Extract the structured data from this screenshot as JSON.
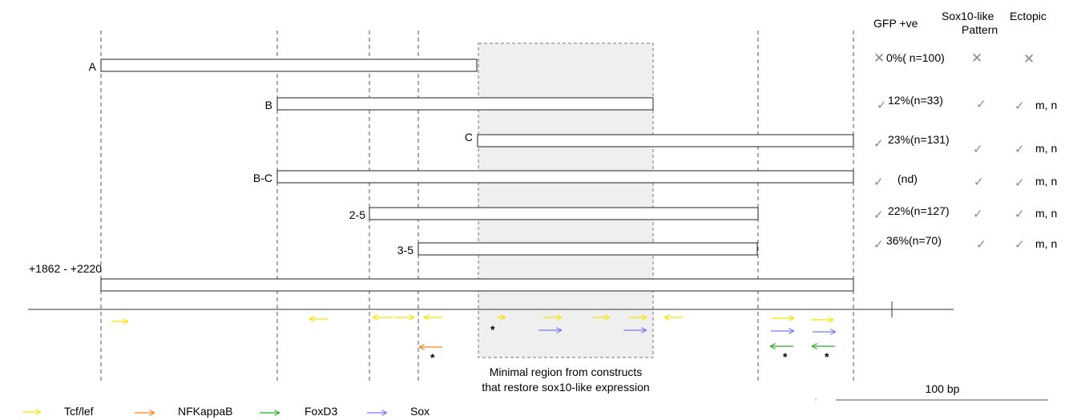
{
  "headers": {
    "gfp": "GFP +ve",
    "sox10_line1": "Sox10-like",
    "sox10_line2": "Pattern",
    "ectopic": "Ectopic"
  },
  "constructs": [
    {
      "label": "A",
      "gfp": "0%( n=100)",
      "gfp_mark": "cross",
      "sox10": "cross",
      "ectopic": "cross",
      "ectopic_text": ""
    },
    {
      "label": "B",
      "gfp": "12%(n=33)",
      "gfp_mark": "check",
      "sox10": "check",
      "ectopic": "check",
      "ectopic_text": "m, n"
    },
    {
      "label": "C",
      "gfp": "23%(n=131)",
      "gfp_mark": "check",
      "sox10": "check",
      "ectopic": "check",
      "ectopic_text": "m, n"
    },
    {
      "label": "B-C",
      "gfp": "(nd)",
      "gfp_mark": "check",
      "sox10": "check",
      "ectopic": "check",
      "ectopic_text": "m, n"
    },
    {
      "label": "2-5",
      "gfp": "22%(n=127)",
      "gfp_mark": "check",
      "sox10": "check",
      "ectopic": "check",
      "ectopic_text": "m, n"
    },
    {
      "label": "3-5",
      "gfp": "36%(n=70)",
      "gfp_mark": "check",
      "sox10": "check",
      "ectopic": "check",
      "ectopic_text": "m, n"
    },
    {
      "label": "+1862 - +2220",
      "gfp": "",
      "gfp_mark": "",
      "sox10": "",
      "ectopic": "",
      "ectopic_text": ""
    }
  ],
  "region_caption_line1": "Minimal region from constructs",
  "region_caption_line2": "that restore sox10-like expression",
  "scale_label": "100 bp",
  "asterisk": "*",
  "legend": [
    {
      "name": "Tcf/lef",
      "color": "#f5e400"
    },
    {
      "name": "NFKappaB",
      "color": "#ff7f1a"
    },
    {
      "name": "FoxD3",
      "color": "#22b022"
    },
    {
      "name": "Sox",
      "color": "#7777ff"
    }
  ],
  "colors": {
    "tcf": "#f5e400",
    "nfkb": "#ff7f1a",
    "foxd3": "#22b022",
    "sox": "#7777ff",
    "region_fill": "#efefef"
  }
}
